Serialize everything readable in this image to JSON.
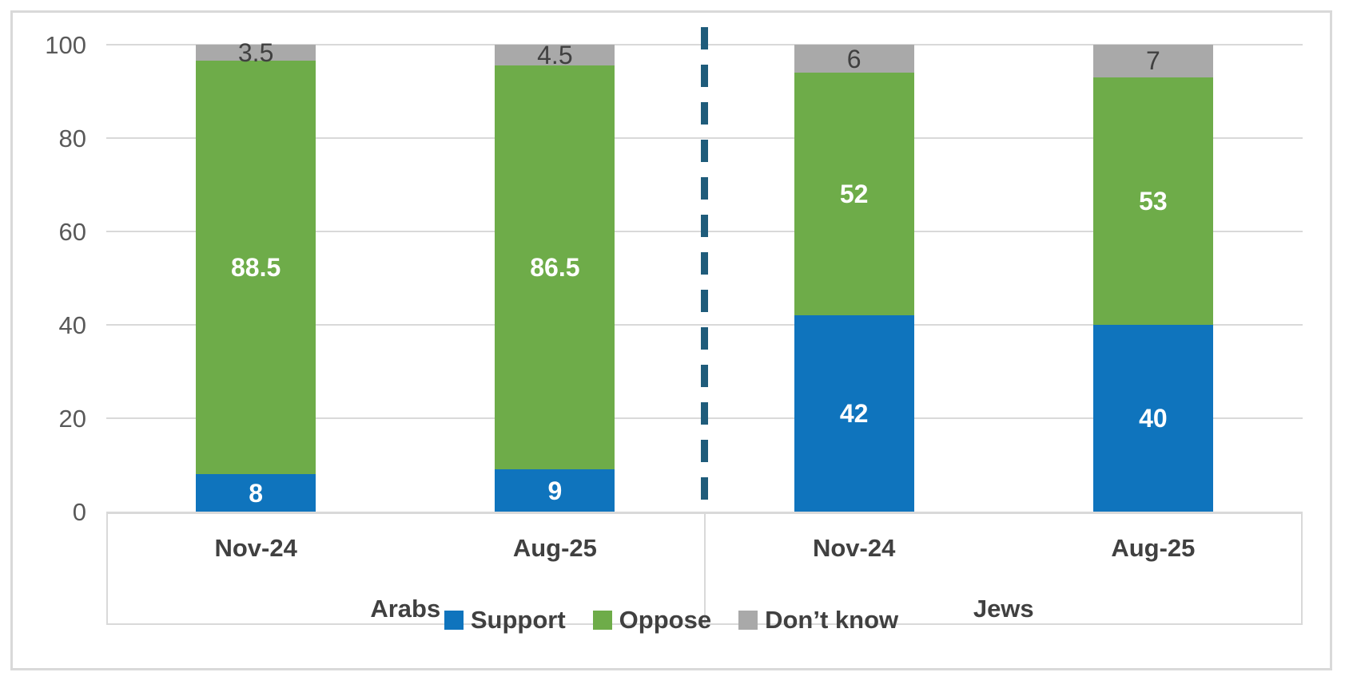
{
  "chart_data": {
    "type": "bar",
    "stacked": true,
    "orientation": "vertical",
    "ylim": [
      0,
      100
    ],
    "y_tick_labels": [
      "0",
      "20",
      "40",
      "60",
      "80",
      "100"
    ],
    "grid": true,
    "group_labels": [
      "Arabs",
      "Jews"
    ],
    "categories": [
      "Nov-24",
      "Aug-25",
      "Nov-24",
      "Aug-25"
    ],
    "category_groups": [
      "Arabs",
      "Arabs",
      "Jews",
      "Jews"
    ],
    "series": [
      {
        "name": "Support",
        "color": "#0F74BD",
        "label_color": "#FFFFFF",
        "label_bold": true,
        "values": [
          8,
          9,
          42,
          40
        ]
      },
      {
        "name": "Oppose",
        "color": "#6EAC49",
        "label_color": "#FFFFFF",
        "label_bold": true,
        "values": [
          88.5,
          86.5,
          52,
          53
        ]
      },
      {
        "name": "Don’t know",
        "color": "#A9A9A9",
        "label_color": "#404040",
        "label_bold": false,
        "values": [
          3.5,
          4.5,
          6,
          7
        ]
      }
    ],
    "legend_position": "bottom",
    "separator_line": {
      "style": "dashed",
      "color": "#1F5C7B",
      "between_groups": [
        "Arabs",
        "Jews"
      ]
    }
  },
  "colors": {
    "background": "#FFFFFF",
    "frame_border": "#D9D9D9",
    "gridline": "#D9D9D9",
    "axis_text": "#595959",
    "category_text": "#404040"
  }
}
